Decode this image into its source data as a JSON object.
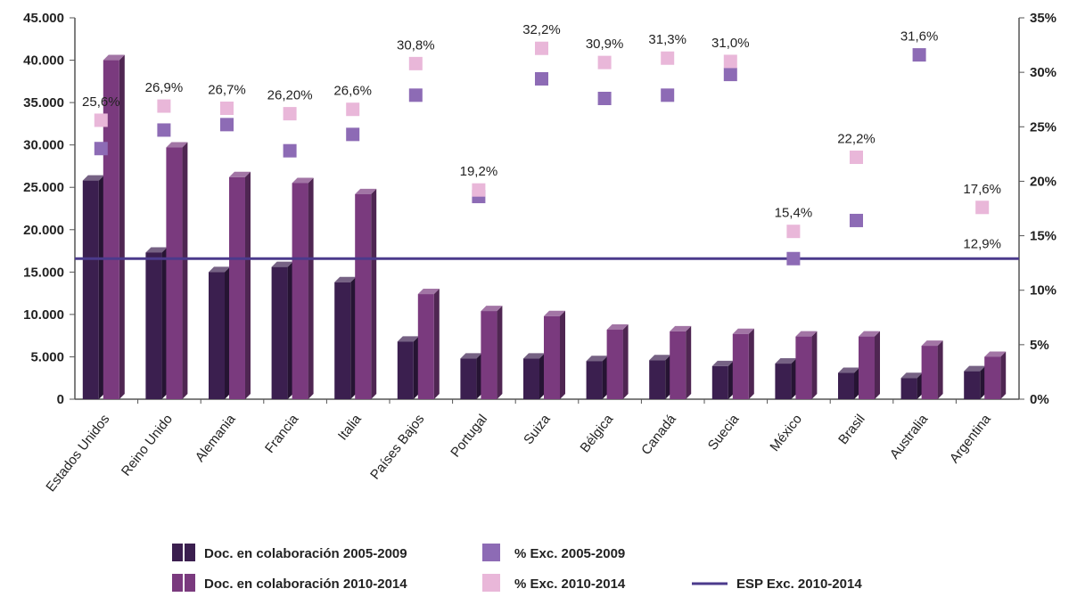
{
  "chart_data": {
    "type": "bar",
    "categories": [
      "Estados Unidos",
      "Reino Unido",
      "Alemania",
      "Francia",
      "Italia",
      "Países Bajos",
      "Portugal",
      "Suiza",
      "Bélgica",
      "Canadá",
      "Suecia",
      "México",
      "Brasil",
      "Australia",
      "Argentina"
    ],
    "series": [
      {
        "name": "Doc. en colaboración 2005-2009",
        "type": "bar",
        "axis": "left",
        "color": "#3b1f4f",
        "values": [
          25800,
          17300,
          15000,
          15600,
          13800,
          6800,
          4800,
          4800,
          4500,
          4600,
          3900,
          4200,
          3100,
          2500,
          3300
        ]
      },
      {
        "name": "Doc. en colaboración 2010-2014",
        "type": "bar",
        "axis": "left",
        "color": "#7a3a7e",
        "values": [
          40000,
          29700,
          26200,
          25500,
          24200,
          12400,
          10400,
          9800,
          8200,
          8000,
          7700,
          7400,
          7400,
          6300,
          5000
        ]
      },
      {
        "name": "% Exc. 2005-2009",
        "type": "marker",
        "axis": "right",
        "color": "#8d6bb5",
        "values": [
          23.0,
          24.7,
          25.2,
          22.8,
          24.3,
          27.9,
          18.6,
          29.4,
          27.6,
          27.9,
          29.8,
          12.9,
          16.4,
          31.6,
          null
        ]
      },
      {
        "name": "% Exc. 2010-2014",
        "type": "marker",
        "axis": "right",
        "color": "#e9b7d9",
        "values": [
          25.6,
          26.9,
          26.7,
          26.2,
          26.6,
          30.8,
          19.2,
          32.2,
          30.9,
          31.3,
          31.0,
          15.4,
          22.2,
          null,
          17.6
        ],
        "labels": [
          "25,6%",
          "26,9%",
          "26,7%",
          "26,20%",
          "26,6%",
          "30,8%",
          "19,2%",
          "32,2%",
          "30,9%",
          "31,3%",
          "31,0%",
          "15,4%",
          "22,2%",
          "",
          "17,6%"
        ]
      },
      {
        "name": "ESP Exc. 2010-2014",
        "type": "reference-line",
        "axis": "right",
        "color": "#4b3a8c",
        "value": 12.9,
        "label": "12,9%"
      }
    ],
    "extra_labels": [
      {
        "category": "Australia",
        "series": "% Exc. 2005-2009",
        "text": "31,6%"
      }
    ],
    "y_left": {
      "min": 0,
      "max": 45000,
      "ticks": [
        "0",
        "5.000",
        "10.000",
        "15.000",
        "20.000",
        "25.000",
        "30.000",
        "35.000",
        "40.000",
        "45.000"
      ]
    },
    "y_right": {
      "min": 0,
      "max": 35,
      "ticks": [
        "0%",
        "5%",
        "10%",
        "15%",
        "20%",
        "25%",
        "30%",
        "35%"
      ]
    },
    "grid": false,
    "legend_position": "bottom"
  }
}
